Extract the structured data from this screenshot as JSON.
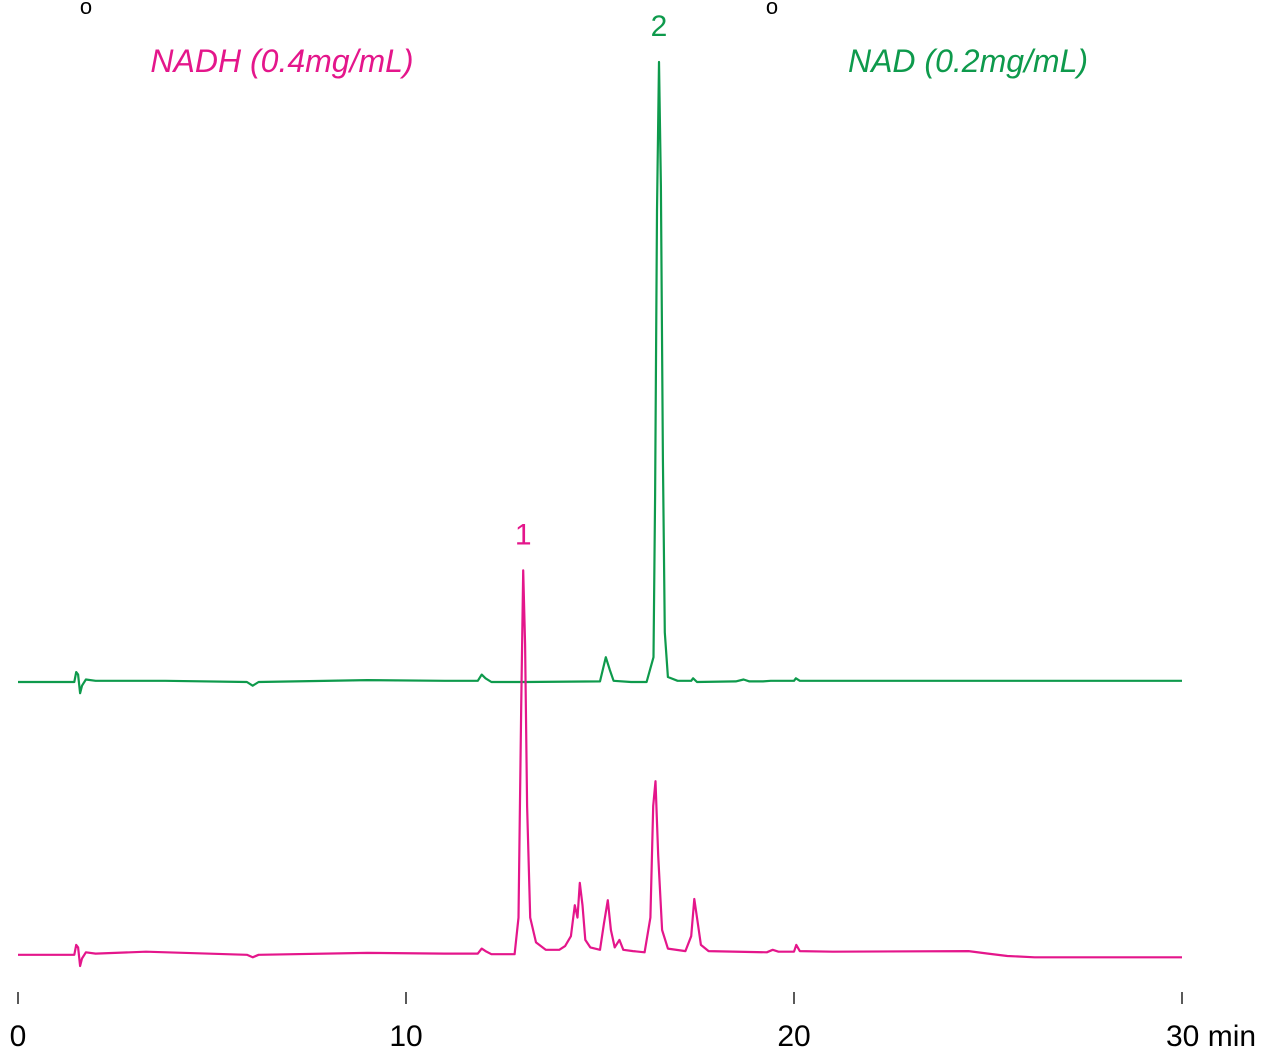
{
  "chart_data": {
    "type": "line",
    "xlabel": "",
    "ylabel": "",
    "xlim": [
      0,
      30
    ],
    "xticks": [
      {
        "value": 0,
        "label": "0"
      },
      {
        "value": 10,
        "label": "10"
      },
      {
        "value": 20,
        "label": "20"
      },
      {
        "value": 30,
        "label": "30 min"
      }
    ],
    "grid": false,
    "series": [
      {
        "name": "NAD (0.2mg/mL)",
        "label_text": "NAD (0.2mg/mL)",
        "color": "#0e9a4c",
        "baseline_level": 0,
        "points": [
          [
            0.0,
            0.0
          ],
          [
            1.45,
            0.0
          ],
          [
            1.5,
            0.8
          ],
          [
            1.55,
            0.6
          ],
          [
            1.6,
            -0.9
          ],
          [
            1.65,
            -0.3
          ],
          [
            1.75,
            0.2
          ],
          [
            2.0,
            0.1
          ],
          [
            3.8,
            0.1
          ],
          [
            5.9,
            0.0
          ],
          [
            6.05,
            -0.3
          ],
          [
            6.2,
            0.0
          ],
          [
            9.0,
            0.15
          ],
          [
            11.0,
            0.1
          ],
          [
            11.85,
            0.1
          ],
          [
            11.95,
            0.6
          ],
          [
            12.05,
            0.3
          ],
          [
            12.2,
            0.0
          ],
          [
            12.9,
            0.0
          ],
          [
            13.1,
            0.0
          ],
          [
            15.0,
            0.05
          ],
          [
            15.15,
            2.0
          ],
          [
            15.25,
            1.0
          ],
          [
            15.35,
            0.1
          ],
          [
            15.8,
            0.0
          ],
          [
            16.2,
            0.0
          ],
          [
            16.38,
            2.0
          ],
          [
            16.42,
            15.0
          ],
          [
            16.47,
            38.0
          ],
          [
            16.52,
            50.0
          ],
          [
            16.57,
            40.0
          ],
          [
            16.62,
            18.0
          ],
          [
            16.67,
            4.0
          ],
          [
            16.75,
            0.4
          ],
          [
            17.0,
            0.1
          ],
          [
            17.35,
            0.1
          ],
          [
            17.4,
            0.3
          ],
          [
            17.5,
            0.0
          ],
          [
            18.5,
            0.05
          ],
          [
            18.7,
            0.2
          ],
          [
            18.85,
            0.05
          ],
          [
            19.2,
            0.05
          ],
          [
            19.4,
            0.1
          ],
          [
            20.0,
            0.1
          ],
          [
            20.05,
            0.3
          ],
          [
            20.15,
            0.1
          ],
          [
            24.0,
            0.1
          ],
          [
            30.0,
            0.1
          ]
        ]
      },
      {
        "name": "NADH (0.4mg/mL)",
        "label_text": "NADH (0.4mg/mL)",
        "color": "#e4168b",
        "baseline_level": -22,
        "points": [
          [
            0.0,
            0.0
          ],
          [
            1.45,
            0.0
          ],
          [
            1.5,
            0.8
          ],
          [
            1.55,
            0.6
          ],
          [
            1.6,
            -0.9
          ],
          [
            1.65,
            -0.3
          ],
          [
            1.75,
            0.2
          ],
          [
            2.0,
            0.1
          ],
          [
            3.3,
            0.25
          ],
          [
            5.9,
            0.0
          ],
          [
            6.05,
            -0.2
          ],
          [
            6.2,
            0.0
          ],
          [
            9.0,
            0.15
          ],
          [
            11.0,
            0.1
          ],
          [
            11.85,
            0.1
          ],
          [
            11.95,
            0.5
          ],
          [
            12.05,
            0.3
          ],
          [
            12.2,
            0.05
          ],
          [
            12.8,
            0.05
          ],
          [
            12.9,
            3.0
          ],
          [
            12.97,
            20.0
          ],
          [
            13.02,
            31.0
          ],
          [
            13.07,
            25.0
          ],
          [
            13.12,
            12.0
          ],
          [
            13.2,
            3.0
          ],
          [
            13.35,
            1.0
          ],
          [
            13.6,
            0.4
          ],
          [
            13.95,
            0.4
          ],
          [
            14.1,
            0.7
          ],
          [
            14.25,
            1.5
          ],
          [
            14.35,
            4.0
          ],
          [
            14.42,
            3.0
          ],
          [
            14.48,
            5.8
          ],
          [
            14.55,
            4.0
          ],
          [
            14.62,
            1.2
          ],
          [
            14.75,
            0.6
          ],
          [
            15.0,
            0.4
          ],
          [
            15.1,
            2.5
          ],
          [
            15.2,
            4.4
          ],
          [
            15.28,
            2.0
          ],
          [
            15.38,
            0.6
          ],
          [
            15.5,
            1.2
          ],
          [
            15.6,
            0.4
          ],
          [
            15.85,
            0.3
          ],
          [
            16.15,
            0.2
          ],
          [
            16.3,
            3.0
          ],
          [
            16.37,
            12.0
          ],
          [
            16.43,
            14.0
          ],
          [
            16.5,
            8.0
          ],
          [
            16.6,
            2.0
          ],
          [
            16.75,
            0.5
          ],
          [
            17.2,
            0.3
          ],
          [
            17.35,
            1.5
          ],
          [
            17.43,
            4.5
          ],
          [
            17.5,
            3.0
          ],
          [
            17.6,
            0.8
          ],
          [
            17.8,
            0.3
          ],
          [
            19.3,
            0.2
          ],
          [
            19.45,
            0.4
          ],
          [
            19.6,
            0.25
          ],
          [
            20.0,
            0.25
          ],
          [
            20.06,
            0.8
          ],
          [
            20.15,
            0.3
          ],
          [
            21.0,
            0.25
          ],
          [
            24.5,
            0.3
          ],
          [
            25.0,
            0.1
          ],
          [
            25.5,
            -0.1
          ],
          [
            26.2,
            -0.2
          ],
          [
            30.0,
            -0.2
          ]
        ]
      }
    ],
    "peaks": [
      {
        "label": "1",
        "series": 1,
        "x": 13.02
      },
      {
        "label": "2",
        "series": 0,
        "x": 16.52
      }
    ],
    "annotations": [
      "o",
      "o"
    ]
  }
}
